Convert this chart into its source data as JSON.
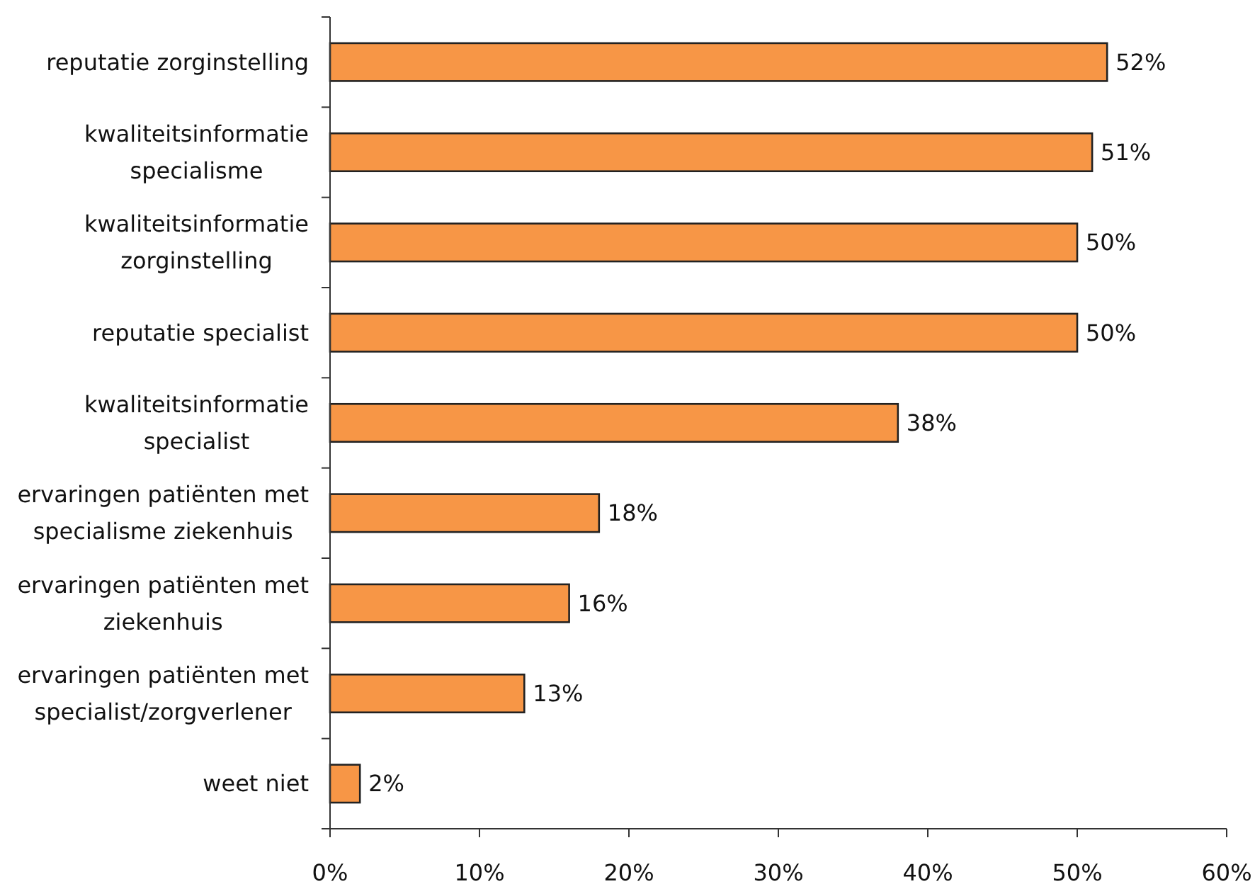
{
  "chart_data": {
    "type": "bar",
    "orientation": "horizontal",
    "categories": [
      "reputatie zorginstelling",
      "kwaliteitsinformatie specialisme",
      "kwaliteitsinformatie zorginstelling",
      "reputatie specialist",
      "kwaliteitsinformatie specialist",
      "ervaringen patiënten met specialisme ziekenhuis",
      "ervaringen patiënten met ziekenhuis",
      "ervaringen patiënten met specialist/zorgverlener",
      "weet niet"
    ],
    "values": [
      52,
      51,
      50,
      50,
      38,
      18,
      16,
      13,
      2
    ],
    "value_labels": [
      "52%",
      "51%",
      "50%",
      "50%",
      "38%",
      "18%",
      "16%",
      "13%",
      "2%"
    ],
    "color": "#f79646",
    "xlim": [
      0,
      60
    ],
    "xticks": [
      {
        "value": 0,
        "label": "0%"
      },
      {
        "value": 10,
        "label": "10%"
      },
      {
        "value": 20,
        "label": "20%"
      },
      {
        "value": 30,
        "label": "30%"
      },
      {
        "value": 40,
        "label": "40%"
      },
      {
        "value": 50,
        "label": "50%"
      },
      {
        "value": 60,
        "label": "60%"
      }
    ]
  }
}
